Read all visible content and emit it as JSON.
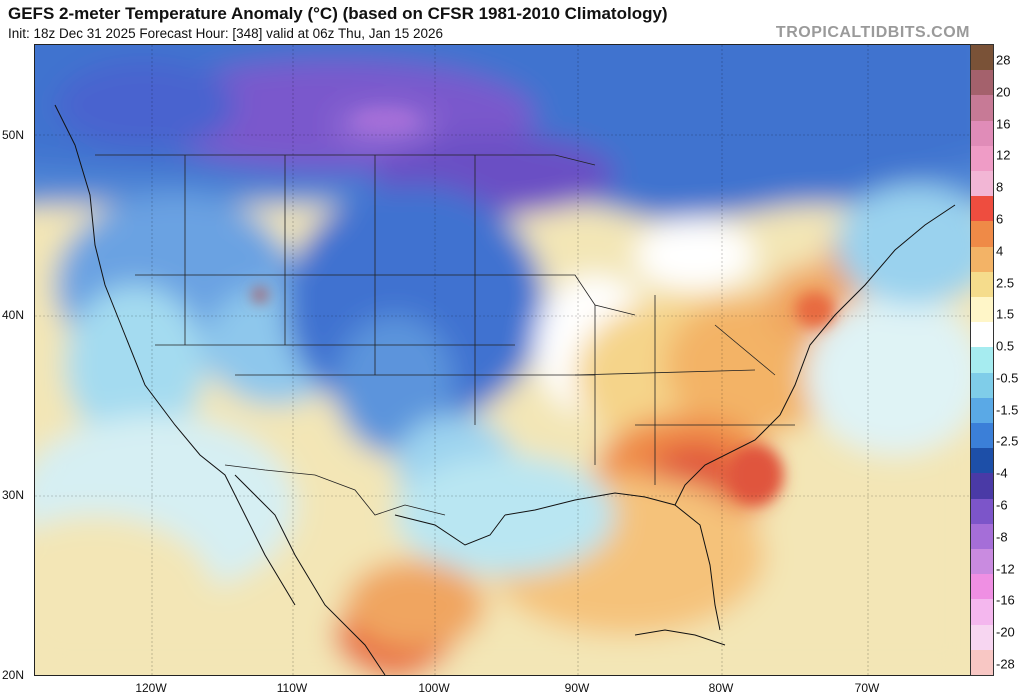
{
  "header": {
    "title": "GEFS 2-meter Temperature Anomaly (°C) (based on CFSR 1981-2010 Climatology)",
    "subtitle": "Init: 18z Dec 31 2025   Forecast Hour: [348]   valid at 06z Thu, Jan 15 2026",
    "brand": "TROPICALTIDBITS.COM"
  },
  "axes": {
    "latitude_labels": [
      "50N",
      "40N",
      "30N",
      "20N"
    ],
    "longitude_labels": [
      "120W",
      "110W",
      "100W",
      "90W",
      "80W",
      "70W"
    ]
  },
  "colorbar": {
    "levels": [
      "28",
      "20",
      "16",
      "12",
      "8",
      "6",
      "4",
      "2.5",
      "1.5",
      "0.5",
      "-0.5",
      "-1.5",
      "-2.5",
      "-4",
      "-6",
      "-8",
      "-12",
      "-16",
      "-20",
      "-28"
    ],
    "colors": [
      "#7a5237",
      "#a4616c",
      "#c77a96",
      "#e08cb8",
      "#ef9cc6",
      "#f2b6d5",
      "#ee4d3f",
      "#ef8a47",
      "#f3b366",
      "#f5dc8c",
      "#fff6c8",
      "#ffffff",
      "#a6ecf0",
      "#7fcde9",
      "#5aa9e6",
      "#3b7fd8",
      "#1d4fa8",
      "#4a3aa6",
      "#7c55c9",
      "#a56ed8",
      "#c98be0",
      "#ef8fe3",
      "#f4b7ee",
      "#f7d6f1",
      "#f8c7c4"
    ]
  }
}
